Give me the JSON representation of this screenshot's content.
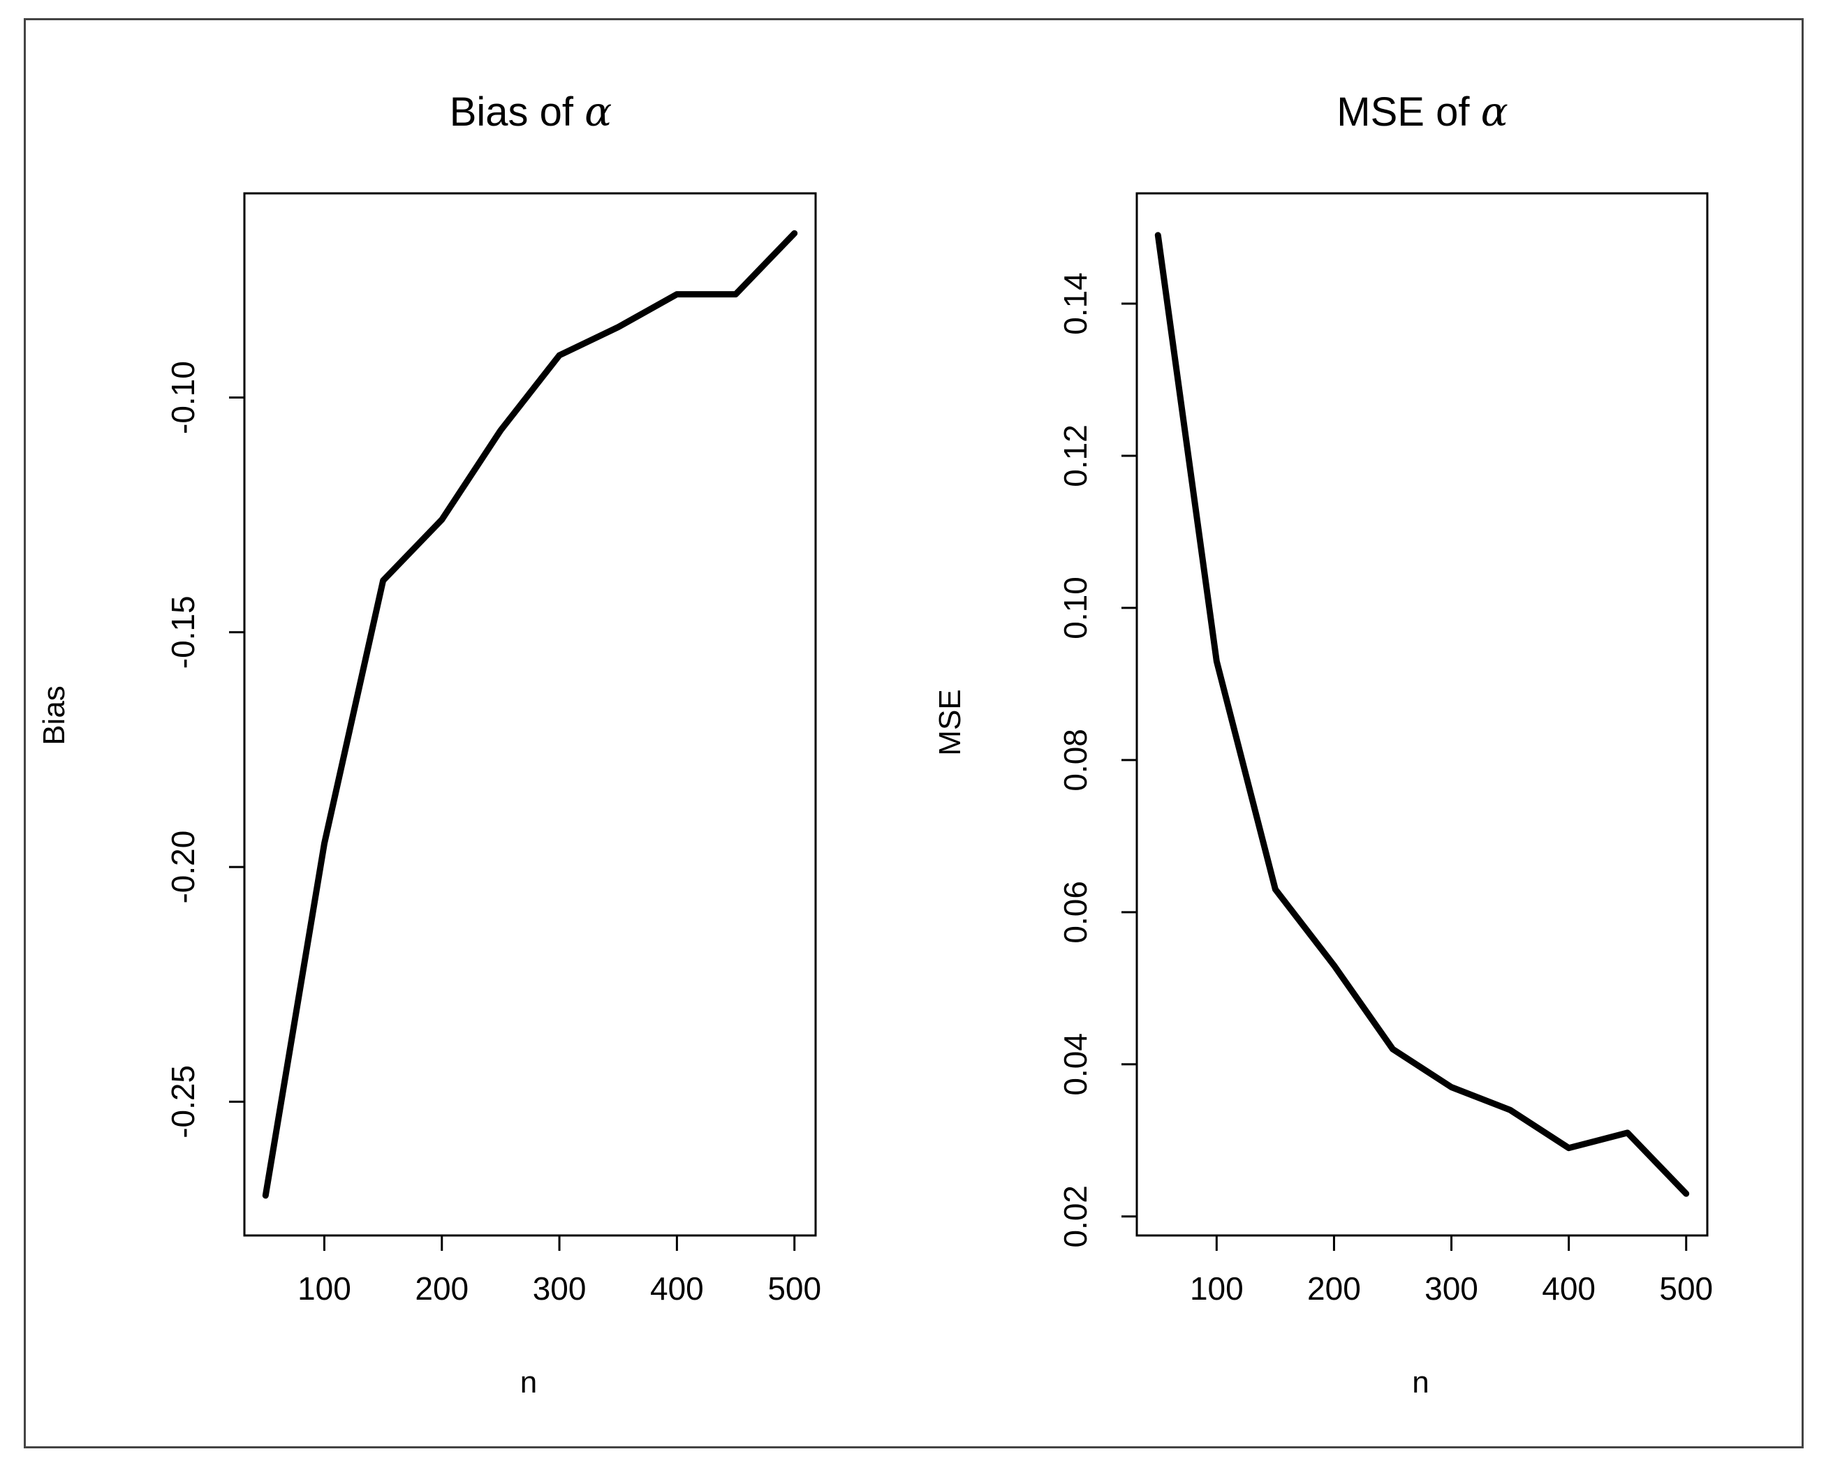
{
  "figure": {
    "frame_color": "#444444",
    "line_color": "#000000"
  },
  "chart_data": [
    {
      "type": "line",
      "title": "Bias of",
      "title_symbol": "α",
      "xlabel": "n",
      "ylabel": "Bias",
      "x": [
        50,
        100,
        150,
        200,
        250,
        300,
        350,
        400,
        450,
        500
      ],
      "values": [
        -0.27,
        -0.195,
        -0.139,
        -0.126,
        -0.107,
        -0.091,
        -0.085,
        -0.078,
        -0.078,
        -0.065
      ],
      "xlim": [
        32,
        518
      ],
      "ylim": [
        -0.2785,
        -0.0565
      ],
      "xticks": [
        100,
        200,
        300,
        400,
        500
      ],
      "xtick_labels": [
        "100",
        "200",
        "300",
        "400",
        "500"
      ],
      "yticks": [
        -0.25,
        -0.2,
        -0.15,
        -0.1
      ],
      "ytick_labels": [
        "-0.25",
        "-0.20",
        "-0.15",
        "-0.10"
      ],
      "grid": false,
      "legend": "none"
    },
    {
      "type": "line",
      "title": "MSE of",
      "title_symbol": "α",
      "xlabel": "n",
      "ylabel": "MSE",
      "x": [
        50,
        100,
        150,
        200,
        250,
        300,
        350,
        400,
        450,
        500
      ],
      "values": [
        0.149,
        0.093,
        0.063,
        0.053,
        0.042,
        0.037,
        0.034,
        0.029,
        0.031,
        0.023
      ],
      "xlim": [
        32,
        518
      ],
      "ylim": [
        0.0175,
        0.1545
      ],
      "xticks": [
        100,
        200,
        300,
        400,
        500
      ],
      "xtick_labels": [
        "100",
        "200",
        "300",
        "400",
        "500"
      ],
      "yticks": [
        0.02,
        0.04,
        0.06,
        0.08,
        0.1,
        0.12,
        0.14
      ],
      "ytick_labels": [
        "0.02",
        "0.04",
        "0.06",
        "0.08",
        "0.10",
        "0.12",
        "0.14"
      ],
      "grid": false,
      "legend": "none"
    }
  ]
}
